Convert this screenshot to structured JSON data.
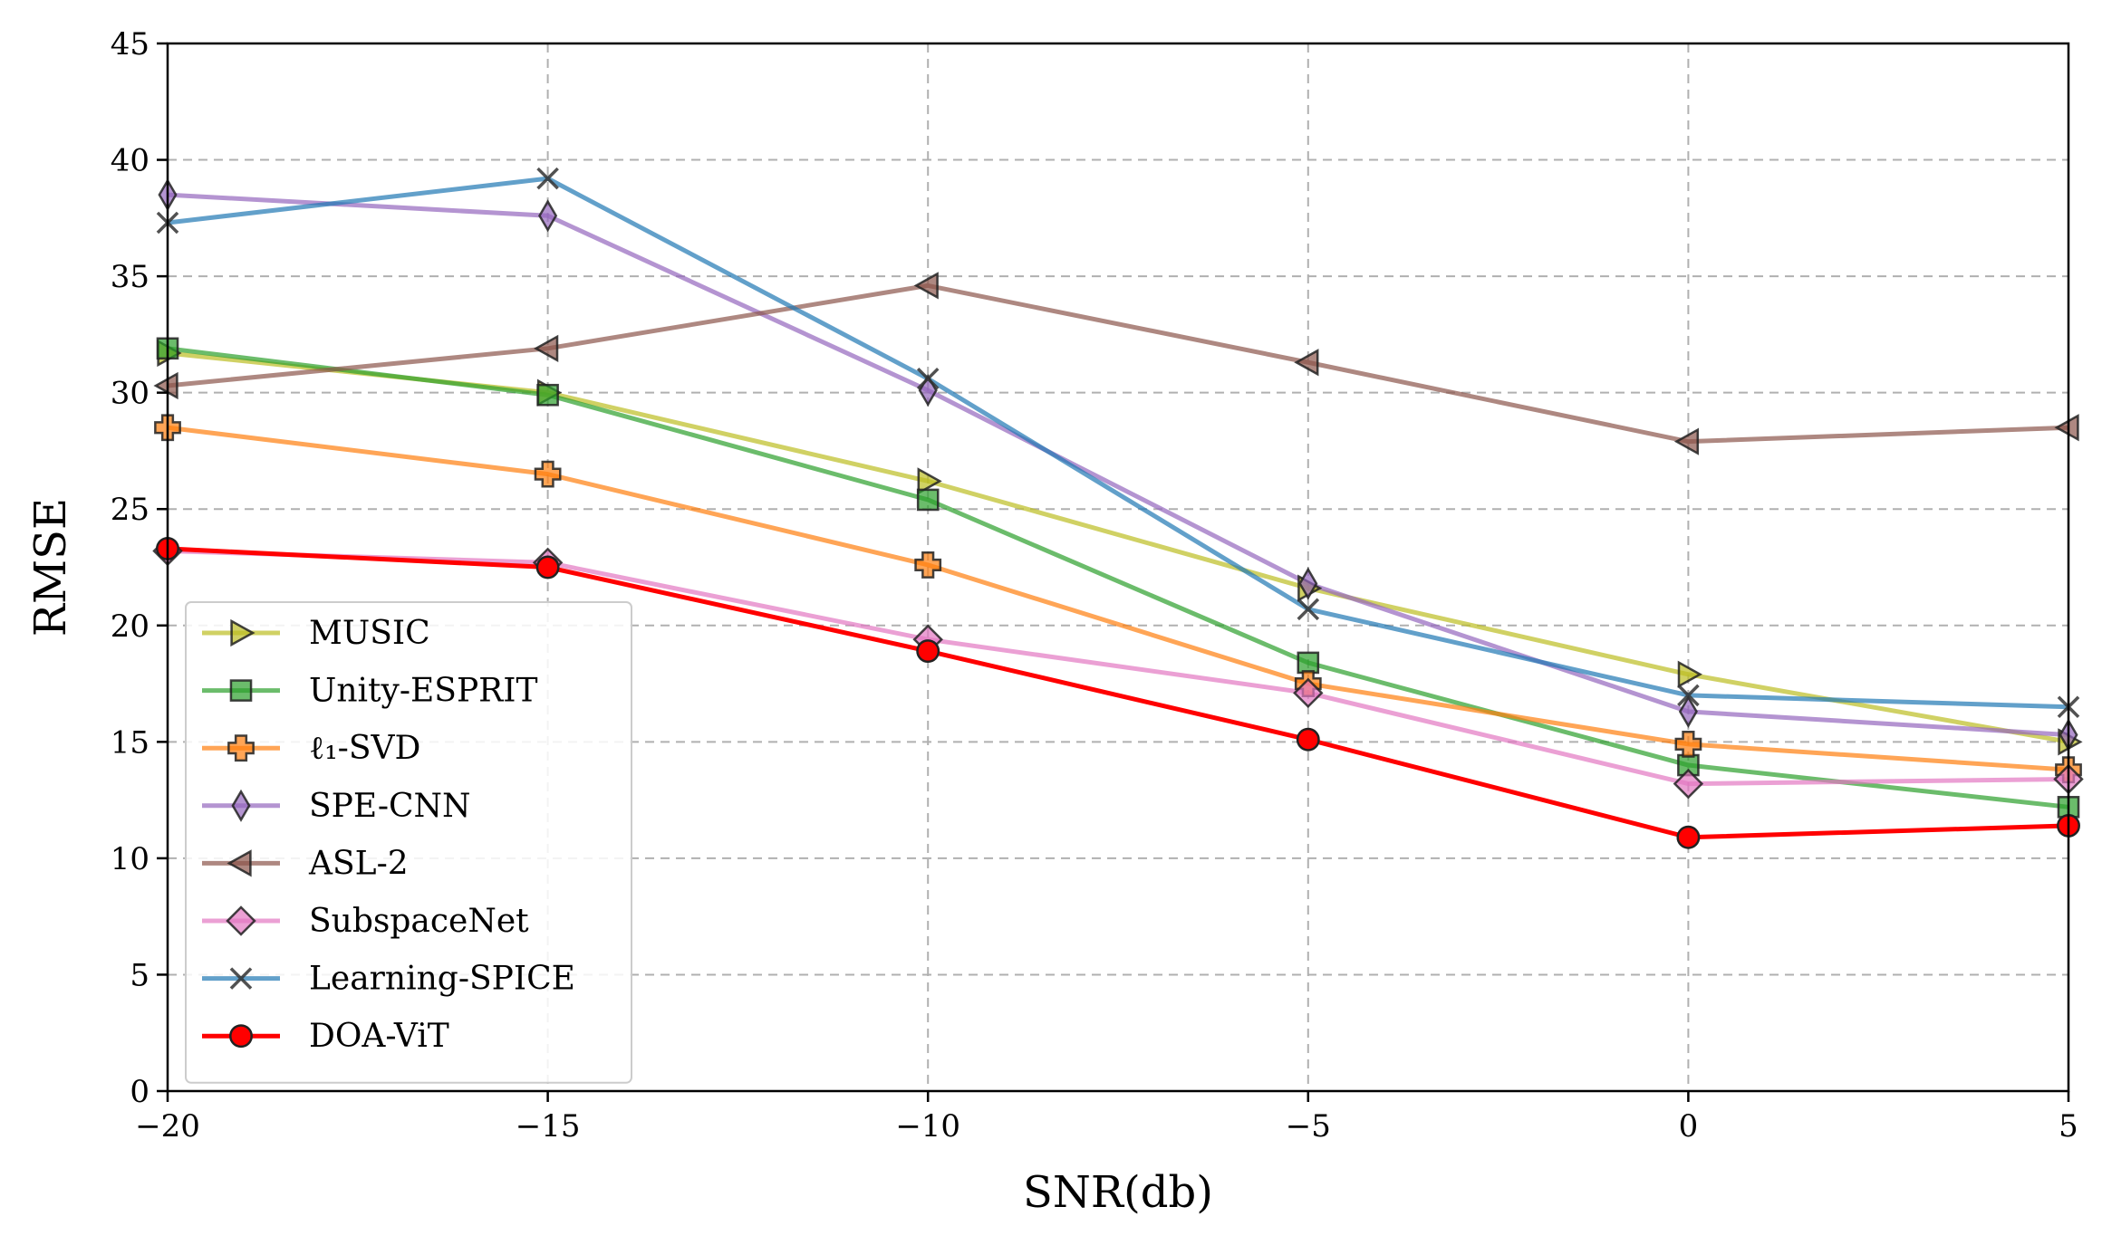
{
  "chart_data": {
    "type": "line",
    "xlabel": "SNR(db)",
    "ylabel": "RMSE",
    "xlim": [
      -20,
      5
    ],
    "ylim": [
      0,
      45
    ],
    "xticks": [
      -20,
      -15,
      -10,
      -5,
      0,
      5
    ],
    "xtick_labels": [
      "−20",
      "−15",
      "−10",
      "−5",
      "0",
      "5"
    ],
    "yticks": [
      0,
      5,
      10,
      15,
      20,
      25,
      30,
      35,
      40,
      45
    ],
    "ytick_labels": [
      "0",
      "5",
      "10",
      "15",
      "20",
      "25",
      "30",
      "35",
      "40",
      "45"
    ],
    "grid": true,
    "legend_position": "lower-left",
    "x": [
      -20,
      -15,
      -10,
      -5,
      0,
      5
    ],
    "series": [
      {
        "name": "MUSIC",
        "values": [
          31.7,
          30.0,
          26.2,
          21.6,
          17.9,
          15.0
        ],
        "color": "#bcbd22",
        "marker": "triangle-right",
        "marker_fill": "#bcbd22",
        "width": 5,
        "alpha": 0.7
      },
      {
        "name": "Unity-ESPRIT",
        "values": [
          31.9,
          29.9,
          25.4,
          18.4,
          14.0,
          12.2
        ],
        "color": "#2ca02c",
        "marker": "square",
        "marker_fill": "#2ca02c",
        "width": 5,
        "alpha": 0.7
      },
      {
        "name": "ℓ₁-SVD",
        "values": [
          28.5,
          26.5,
          22.6,
          17.5,
          14.9,
          13.8
        ],
        "color": "#ff7f0e",
        "marker": "plus",
        "marker_fill": "#ff7f0e",
        "width": 5,
        "alpha": 0.7
      },
      {
        "name": "SPE-CNN",
        "values": [
          38.5,
          37.6,
          30.1,
          21.8,
          16.3,
          15.3
        ],
        "color": "#9467bd",
        "marker": "thin-diamond",
        "marker_fill": "#9467bd",
        "width": 5,
        "alpha": 0.7
      },
      {
        "name": "ASL-2",
        "values": [
          30.3,
          31.9,
          34.6,
          31.3,
          27.9,
          28.5
        ],
        "color": "#8c564b",
        "marker": "triangle-left",
        "marker_fill": "#8c564b",
        "width": 5,
        "alpha": 0.7
      },
      {
        "name": "SubspaceNet",
        "values": [
          23.2,
          22.7,
          19.4,
          17.1,
          13.2,
          13.4
        ],
        "color": "#e377c2",
        "marker": "diamond",
        "marker_fill": "#e377c2",
        "width": 5,
        "alpha": 0.7
      },
      {
        "name": "Learning-SPICE",
        "values": [
          37.3,
          39.2,
          30.6,
          20.7,
          17.0,
          16.5
        ],
        "color": "#1f77b4",
        "marker": "x",
        "marker_fill": "#1f77b4",
        "width": 5,
        "alpha": 0.7
      },
      {
        "name": "DOA-ViT",
        "values": [
          23.3,
          22.5,
          18.9,
          15.1,
          10.9,
          11.4
        ],
        "color": "#ff0000",
        "marker": "circle",
        "marker_fill": "#ff0000",
        "width": 5,
        "alpha": 1.0
      }
    ]
  }
}
